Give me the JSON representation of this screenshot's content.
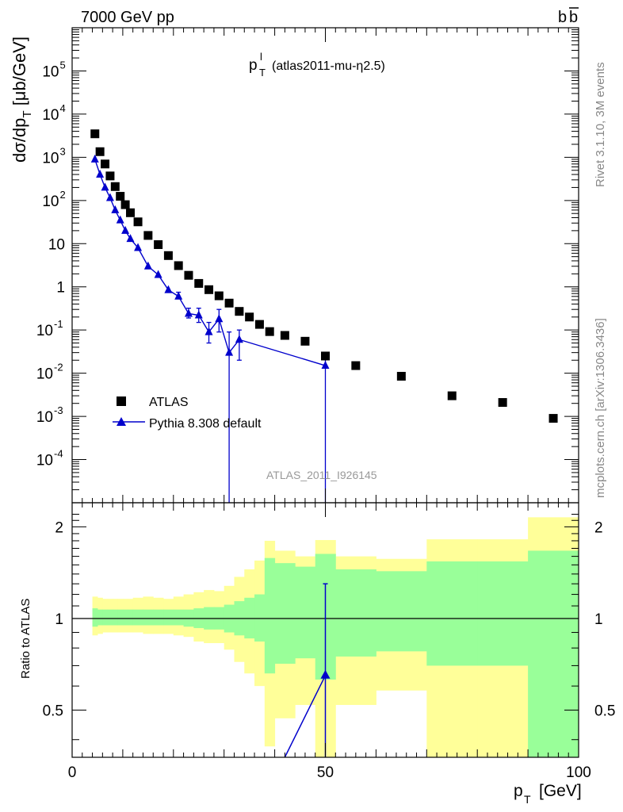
{
  "header": {
    "left": "7000 GeV pp",
    "right_b": "b",
    "right_bbar": "b"
  },
  "plot_title": {
    "main": "p",
    "sup": "l",
    "sub": "T",
    "rest": "(atlas2011-mu-η2.5)"
  },
  "side_labels": {
    "rivet": "Rivet 3.1.10,  3M events",
    "mcplots": "mcplots.cern.ch [arXiv:1306.3436]"
  },
  "watermark": "ATLAS_2011_I926145",
  "legend": {
    "data_label": "ATLAS",
    "mc_label": "Pythia 8.308 default"
  },
  "axes": {
    "ylabel_top": "dσ/dp_T [μb/GeV]",
    "ylabel_bottom": "Ratio to ATLAS",
    "xlabel": "p_T [GeV]",
    "x_ticks": [
      "0",
      "50",
      "100"
    ],
    "ratio_ticks": [
      "0.5",
      "1",
      "2"
    ],
    "ratio_ticks_right": [
      "0.5",
      "1",
      "2"
    ],
    "main_ticks": [
      "10^-4",
      "10^-3",
      "10^-2",
      "10^-1",
      "1",
      "10",
      "10^2",
      "10^3",
      "10^4",
      "10^5"
    ]
  },
  "colors": {
    "mc": "#0000cc",
    "data": "#000000",
    "band_stat": "#99ff99",
    "band_total": "#ffff99"
  },
  "chart_data": [
    {
      "type": "scatter",
      "title": "",
      "xlabel": "p_T [GeV]",
      "ylabel": "dσ/dp_T [μb/GeV]",
      "log_y": true,
      "xlim": [
        0,
        100
      ],
      "ylim": [
        1e-05,
        1000000.0
      ],
      "series": [
        {
          "name": "ATLAS",
          "marker": "square",
          "x": [
            4.5,
            5.5,
            6.5,
            7.5,
            8.5,
            9.5,
            10.5,
            11.5,
            13,
            15,
            17,
            19,
            21,
            23,
            25,
            27,
            29,
            31,
            33,
            35,
            37,
            39,
            42,
            46,
            50,
            56,
            65,
            75,
            85,
            95
          ],
          "y": [
            3500,
            1350,
            700,
            370,
            210,
            125,
            80,
            52,
            32,
            15.5,
            9.5,
            5.3,
            3.1,
            1.85,
            1.2,
            0.86,
            0.62,
            0.42,
            0.27,
            0.2,
            0.135,
            0.092,
            0.075,
            0.055,
            0.025,
            0.015,
            0.0085,
            0.003,
            0.0021,
            0.0009
          ]
        },
        {
          "name": "Pythia 8.308 default",
          "marker": "triangle",
          "x": [
            4.5,
            5.5,
            6.5,
            7.5,
            8.5,
            9.5,
            10.5,
            11.5,
            13,
            15,
            17,
            19,
            21,
            23,
            25,
            27,
            29,
            31,
            33,
            50
          ],
          "y": [
            900,
            400,
            200,
            115,
            60,
            35,
            20,
            13,
            8,
            3,
            1.9,
            0.85,
            0.6,
            0.24,
            0.22,
            0.09,
            0.18,
            0.03,
            0.06,
            0.015
          ],
          "yerr_low": [
            0,
            0,
            0,
            0,
            0,
            0,
            0,
            0,
            0,
            0,
            0,
            0,
            0.07,
            0.05,
            0.07,
            0.04,
            0.09,
            0.03,
            0.04,
            0.015
          ],
          "yerr_high": [
            0,
            0,
            0,
            0,
            0,
            0,
            0,
            0,
            0,
            0,
            0,
            0,
            0.15,
            0.08,
            0.1,
            0.06,
            0.12,
            0.06,
            0.04,
            0.015
          ]
        }
      ]
    },
    {
      "type": "area",
      "title": "",
      "xlabel": "p_T [GeV]",
      "ylabel": "Ratio to ATLAS",
      "log_y": true,
      "xlim": [
        0,
        100
      ],
      "ylim": [
        0.35,
        2.4
      ],
      "reference_line": 1,
      "bins": [
        [
          4,
          5,
          0.88,
          1.18,
          0.94,
          1.08
        ],
        [
          5,
          6,
          0.89,
          1.17,
          0.95,
          1.07
        ],
        [
          6,
          7,
          0.9,
          1.16,
          0.95,
          1.07
        ],
        [
          7,
          8,
          0.9,
          1.16,
          0.95,
          1.07
        ],
        [
          8,
          9,
          0.9,
          1.16,
          0.95,
          1.07
        ],
        [
          9,
          10,
          0.9,
          1.16,
          0.95,
          1.07
        ],
        [
          10,
          11,
          0.9,
          1.16,
          0.95,
          1.07
        ],
        [
          11,
          12,
          0.9,
          1.16,
          0.95,
          1.07
        ],
        [
          12,
          14,
          0.9,
          1.17,
          0.95,
          1.07
        ],
        [
          14,
          16,
          0.89,
          1.18,
          0.95,
          1.07
        ],
        [
          16,
          18,
          0.89,
          1.17,
          0.95,
          1.07
        ],
        [
          18,
          20,
          0.89,
          1.16,
          0.95,
          1.07
        ],
        [
          20,
          22,
          0.88,
          1.18,
          0.95,
          1.07
        ],
        [
          22,
          24,
          0.87,
          1.2,
          0.94,
          1.07
        ],
        [
          24,
          26,
          0.84,
          1.22,
          0.93,
          1.08
        ],
        [
          26,
          28,
          0.83,
          1.24,
          0.92,
          1.09
        ],
        [
          28,
          30,
          0.83,
          1.23,
          0.92,
          1.09
        ],
        [
          30,
          32,
          0.79,
          1.28,
          0.9,
          1.11
        ],
        [
          32,
          34,
          0.72,
          1.37,
          0.88,
          1.14
        ],
        [
          34,
          36,
          0.66,
          1.45,
          0.86,
          1.17
        ],
        [
          36,
          38,
          0.6,
          1.55,
          0.84,
          1.2
        ],
        [
          38,
          40,
          0.38,
          1.8,
          0.66,
          1.58
        ],
        [
          40,
          44,
          0.47,
          1.67,
          0.71,
          1.52
        ],
        [
          44,
          48,
          0.52,
          1.6,
          0.74,
          1.48
        ],
        [
          48,
          52,
          0.33,
          1.81,
          0.63,
          1.63
        ],
        [
          52,
          60,
          0.52,
          1.6,
          0.75,
          1.45
        ],
        [
          60,
          70,
          0.58,
          1.57,
          0.78,
          1.43
        ],
        [
          70,
          80,
          0.32,
          1.82,
          0.7,
          1.54
        ],
        [
          80,
          90,
          0.32,
          1.82,
          0.7,
          1.54
        ],
        [
          90,
          100,
          0.32,
          2.15,
          0.33,
          1.67
        ]
      ],
      "bins_format": [
        "x_low",
        "x_high",
        "total_low",
        "total_high",
        "stat_low",
        "stat_high"
      ],
      "series": [
        {
          "name": "Pythia 8.308 default",
          "x": [
            40,
            50
          ],
          "y": [
            0.3,
            0.65
          ],
          "yerr_low": [
            0,
            0.3
          ],
          "yerr_high": [
            0,
            0.65
          ]
        }
      ]
    }
  ]
}
